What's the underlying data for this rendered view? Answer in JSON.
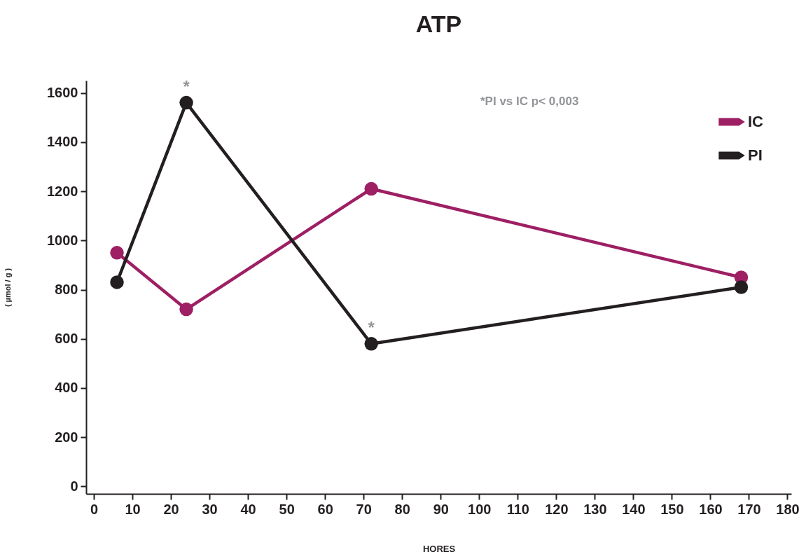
{
  "chart_data": {
    "type": "line",
    "title": "ATP",
    "xlabel": "HORES",
    "ylabel": "( µmol / g )",
    "x": [
      6,
      24,
      72,
      168
    ],
    "series": [
      {
        "name": "IC",
        "color": "#9e1f63",
        "values": [
          950,
          720,
          1210,
          850
        ]
      },
      {
        "name": "PI",
        "color": "#231f20",
        "values": [
          830,
          1560,
          580,
          810
        ]
      }
    ],
    "xlim": [
      -2,
      181
    ],
    "xticks": [
      0,
      10,
      20,
      30,
      40,
      50,
      60,
      70,
      80,
      90,
      100,
      110,
      120,
      130,
      140,
      150,
      160,
      170,
      180
    ],
    "ylim": [
      -30,
      1650
    ],
    "yticks": [
      0,
      200,
      400,
      600,
      800,
      1000,
      1200,
      1400,
      1600
    ],
    "annotations": [
      {
        "text": "*",
        "x": 24,
        "y": 1560
      },
      {
        "text": "*",
        "x": 72,
        "y": 580
      },
      "*PI vs IC p< 0,003"
    ],
    "grid": false,
    "legend": "top right",
    "marker": "circle",
    "line_style": "solid"
  }
}
